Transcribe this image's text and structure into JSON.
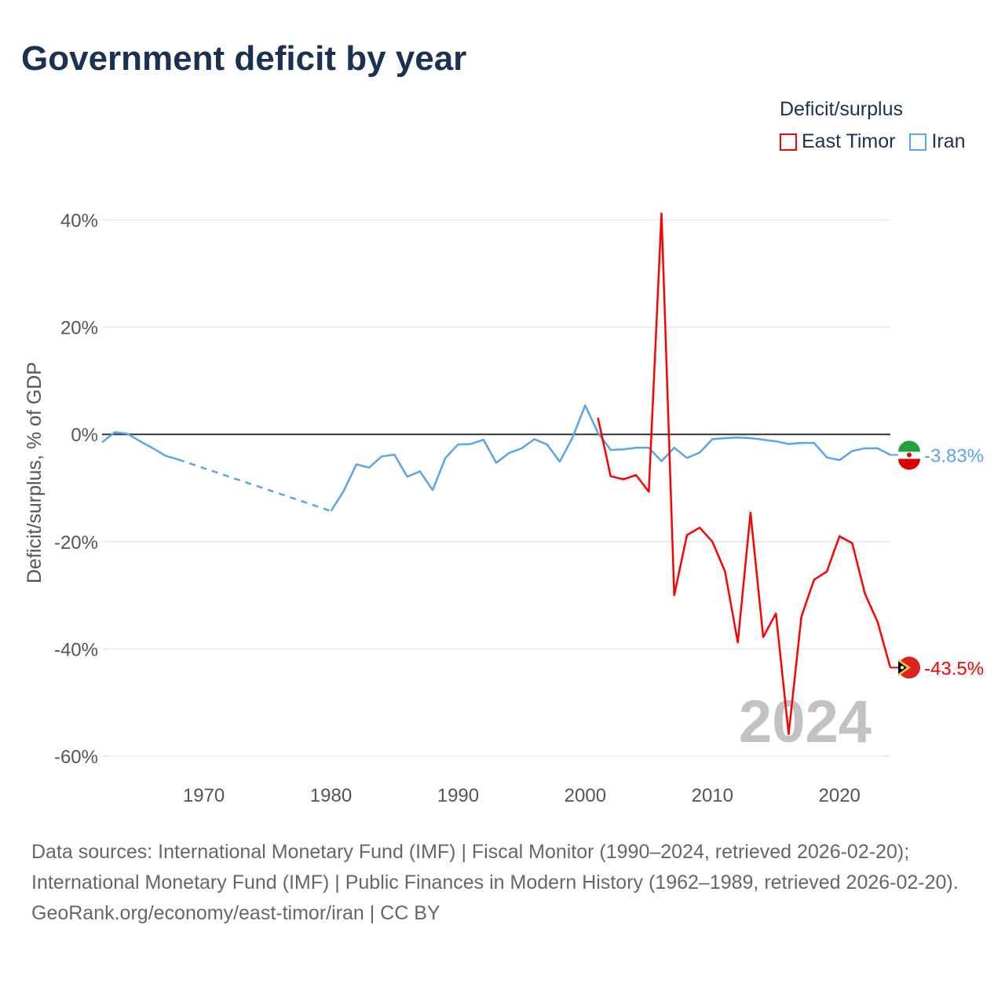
{
  "title": "Government deficit by year",
  "legend": {
    "title": "Deficit/surplus",
    "items": [
      {
        "label": "East Timor",
        "color": "#ff0000"
      },
      {
        "label": "Iran",
        "color": "#5aa5ea"
      }
    ]
  },
  "footer": {
    "sources": "Data sources: International Monetary Fund (IMF) | Fiscal Monitor (1990–2024, retrieved 2026-02-20); International Monetary Fund (IMF) | Public Finances in Modern History (1962–1989, retrieved 2026-02-20).",
    "credit": "GeoRank.org/economy/east-timor/iran | CC BY"
  },
  "chart_data": {
    "type": "line",
    "title": "Government deficit by year",
    "xlabel": "",
    "ylabel": "Deficit/surplus, % of GDP",
    "xlim": [
      1962,
      2024
    ],
    "ylim": [
      -60,
      40
    ],
    "x_ticks": [
      1970,
      1980,
      1990,
      2000,
      2010,
      2020
    ],
    "y_ticks": [
      40,
      20,
      0,
      -20,
      -40,
      -60
    ],
    "y_tick_labels": [
      "40%",
      "20%",
      "0%",
      "-20%",
      "-40%",
      "-60%"
    ],
    "year_watermark": "2024",
    "grid": true,
    "legend_position": "top-right",
    "series": [
      {
        "name": "Iran",
        "color": "#5aa5ea",
        "end_label": "-3.83%",
        "x": [
          1962,
          1963,
          1964,
          1965,
          1966,
          1967,
          1968,
          1980,
          1981,
          1982,
          1983,
          1984,
          1985,
          1986,
          1987,
          1988,
          1989,
          1990,
          1991,
          1992,
          1993,
          1994,
          1995,
          1996,
          1997,
          1998,
          1999,
          2000,
          2001,
          2002,
          2003,
          2004,
          2005,
          2006,
          2007,
          2008,
          2009,
          2010,
          2011,
          2012,
          2013,
          2014,
          2015,
          2016,
          2017,
          2018,
          2019,
          2020,
          2021,
          2022,
          2023,
          2024
        ],
        "y": [
          -1.5,
          0.4,
          0.1,
          -1.3,
          -2.6,
          -4.0,
          -4.7,
          -14.3,
          -10.6,
          -5.6,
          -6.2,
          -4.1,
          -3.8,
          -7.9,
          -6.9,
          -10.4,
          -4.4,
          -1.9,
          -1.8,
          -1.0,
          -5.3,
          -3.5,
          -2.6,
          -0.9,
          -1.9,
          -5.1,
          -0.6,
          5.4,
          0.3,
          -2.9,
          -2.8,
          -2.5,
          -2.5,
          -5.0,
          -2.5,
          -4.4,
          -3.4,
          -0.9,
          -0.7,
          -0.6,
          -0.7,
          -1.0,
          -1.3,
          -1.8,
          -1.6,
          -1.6,
          -4.3,
          -4.8,
          -3.1,
          -2.6,
          -2.6,
          -3.83
        ],
        "dashed_gap": [
          1968,
          1980
        ]
      },
      {
        "name": "East Timor",
        "color": "#ff0000",
        "end_label": "-43.5%",
        "x": [
          2001,
          2002,
          2003,
          2004,
          2005,
          2006,
          2007,
          2008,
          2009,
          2010,
          2011,
          2012,
          2013,
          2014,
          2015,
          2016,
          2017,
          2018,
          2019,
          2020,
          2021,
          2022,
          2023,
          2024
        ],
        "y": [
          3.1,
          -7.8,
          -8.4,
          -7.6,
          -10.7,
          41.2,
          -30.0,
          -18.8,
          -17.4,
          -20.0,
          -25.6,
          -38.8,
          -14.6,
          -37.8,
          -33.4,
          -55.9,
          -34.0,
          -27.1,
          -25.6,
          -19.0,
          -20.3,
          -29.7,
          -35.0,
          -43.5
        ]
      }
    ]
  }
}
